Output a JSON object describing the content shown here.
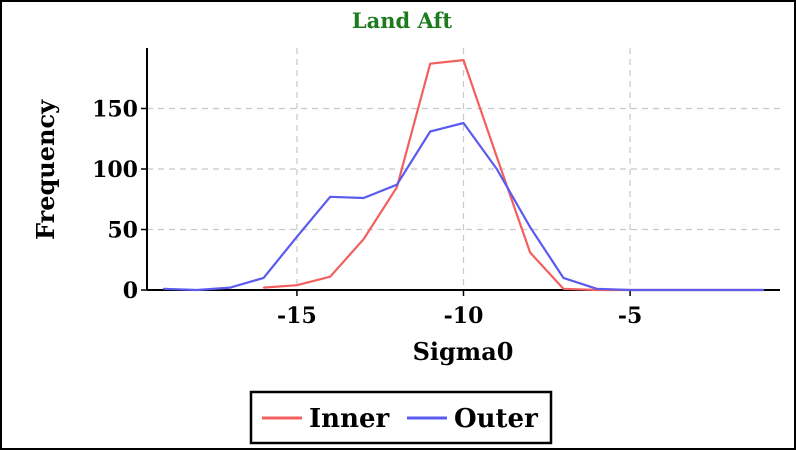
{
  "chart_data": {
    "type": "line",
    "title": "Land Aft",
    "xlabel": "Sigma0",
    "ylabel": "Frequency",
    "xlim": [
      -19.5,
      -0.5
    ],
    "ylim": [
      0,
      200
    ],
    "x_ticks": [
      -15,
      -10,
      -5
    ],
    "y_ticks": [
      0,
      50,
      100,
      150
    ],
    "grid": true,
    "legend_position": "bottom-center",
    "series": [
      {
        "name": "Inner",
        "color": "#f25f5f",
        "points": [
          [
            -16,
            2
          ],
          [
            -15,
            4
          ],
          [
            -14,
            11
          ],
          [
            -13,
            42
          ],
          [
            -12,
            85
          ],
          [
            -11,
            187
          ],
          [
            -10,
            190
          ],
          [
            -9,
            110
          ],
          [
            -8,
            31
          ],
          [
            -7,
            1
          ],
          [
            -6,
            0
          ],
          [
            -5,
            0
          ],
          [
            -1,
            0
          ]
        ]
      },
      {
        "name": "Outer",
        "color": "#5b5bef",
        "points": [
          [
            -19,
            1
          ],
          [
            -18,
            0
          ],
          [
            -17,
            2
          ],
          [
            -16,
            10
          ],
          [
            -15,
            44
          ],
          [
            -14,
            77
          ],
          [
            -13,
            76
          ],
          [
            -12,
            87
          ],
          [
            -11,
            131
          ],
          [
            -10,
            138
          ],
          [
            -9,
            100
          ],
          [
            -8,
            52
          ],
          [
            -7,
            10
          ],
          [
            -6,
            1
          ],
          [
            -5,
            0
          ],
          [
            -1,
            0
          ]
        ]
      }
    ]
  }
}
